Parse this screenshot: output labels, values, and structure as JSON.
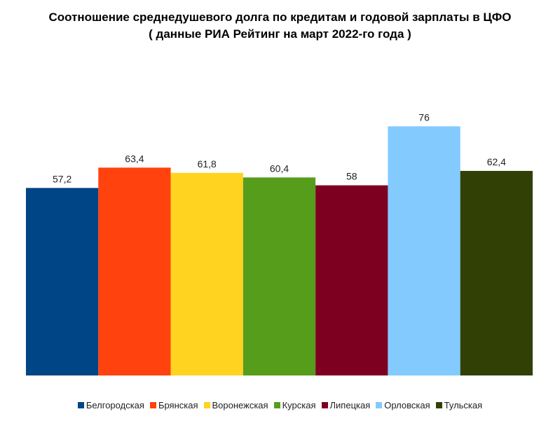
{
  "chart_data": {
    "type": "bar",
    "title": "Соотношение среднедушевого долга по кредитам и годовой зарплаты в ЦФО",
    "subtitle": "( данные РИА Рейтинг на март 2022-го года )",
    "categories": [
      "Белгородская",
      "Брянская",
      "Воронежская",
      "Курская",
      "Липецкая",
      "Орловская",
      "Тульская"
    ],
    "values": [
      57.2,
      63.4,
      61.8,
      60.4,
      58,
      76,
      62.4
    ],
    "value_labels": [
      "57,2",
      "63,4",
      "61,8",
      "60,4",
      "58",
      "76",
      "62,4"
    ],
    "colors": [
      "#004586",
      "#ff420e",
      "#ffd320",
      "#579d1c",
      "#7e0021",
      "#83caff",
      "#314004"
    ],
    "xlabel": "",
    "ylabel": "",
    "ylim": [
      0,
      100
    ],
    "grid": false,
    "legend_position": "bottom"
  }
}
